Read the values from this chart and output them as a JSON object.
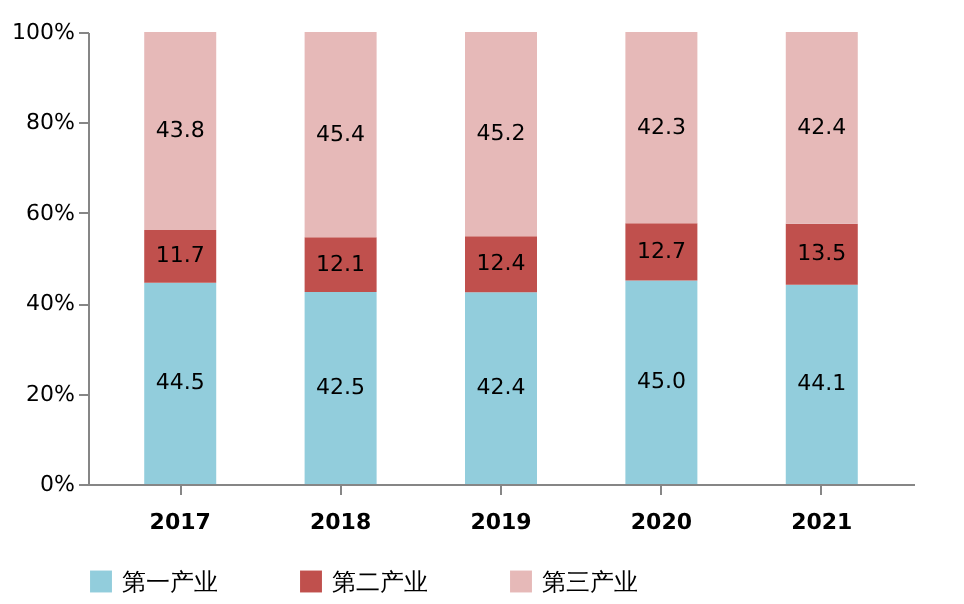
{
  "chart_data": {
    "type": "bar",
    "stacked": true,
    "categories": [
      "2017",
      "2018",
      "2019",
      "2020",
      "2021"
    ],
    "series": [
      {
        "name": "第一产业",
        "color": "#92cddc",
        "values": [
          44.5,
          42.5,
          42.4,
          45.0,
          44.1
        ],
        "value_labels": [
          "44.5",
          "42.5",
          "42.4",
          "45.0",
          "44.1"
        ]
      },
      {
        "name": "第二产业",
        "color": "#c0504d",
        "values": [
          11.7,
          12.1,
          12.4,
          12.7,
          13.5
        ],
        "value_labels": [
          "11.7",
          "12.1",
          "12.4",
          "12.7",
          "13.5"
        ]
      },
      {
        "name": "第三产业",
        "color": "#e6b9b8",
        "values": [
          43.8,
          45.4,
          45.2,
          42.3,
          42.4
        ],
        "value_labels": [
          "43.8",
          "45.4",
          "45.2",
          "42.3",
          "42.4"
        ]
      }
    ],
    "ylim": [
      0,
      100
    ],
    "yticks": [
      {
        "value": 0,
        "label": "0%"
      },
      {
        "value": 20,
        "label": "20%"
      },
      {
        "value": 40,
        "label": "40%"
      },
      {
        "value": 60,
        "label": "60%"
      },
      {
        "value": 80,
        "label": "80%"
      },
      {
        "value": 100,
        "label": "100%"
      }
    ],
    "grid": false,
    "legend": "bottom"
  }
}
